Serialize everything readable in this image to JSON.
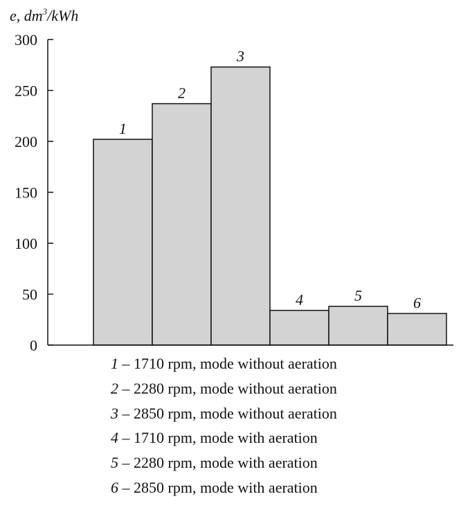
{
  "chart_data": {
    "type": "bar",
    "ylabel_main": "e, dm",
    "ylabel_sup": "3",
    "ylabel_tail": "/kWh",
    "ylim": [
      0,
      300
    ],
    "yticks": [
      0,
      50,
      100,
      150,
      200,
      250,
      300
    ],
    "grid": false,
    "bar_color": "#d3d3d3",
    "categories": [
      "1",
      "2",
      "3",
      "4",
      "5",
      "6"
    ],
    "values": [
      202,
      237,
      273,
      34,
      38,
      31
    ],
    "legend": [
      {
        "num": "1",
        "text": " – 1710 rpm, mode without aeration"
      },
      {
        "num": "2",
        "text": " – 2280 rpm, mode without aeration"
      },
      {
        "num": "3",
        "text": " – 2850 rpm, mode without aeration"
      },
      {
        "num": "4",
        "text": " – 1710 rpm, mode with aeration"
      },
      {
        "num": "5",
        "text": " – 2280 rpm, mode with aeration"
      },
      {
        "num": "6",
        "text": " – 2850 rpm, mode with aeration"
      }
    ]
  }
}
